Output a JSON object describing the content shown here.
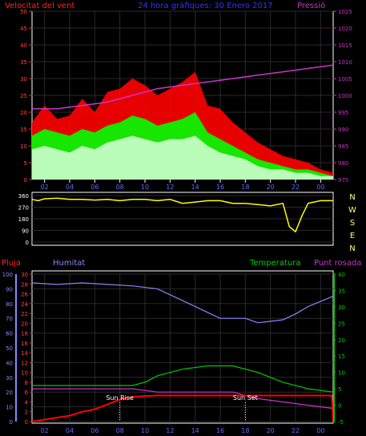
{
  "header": {
    "left_title": "Velocitat del vent",
    "center_title": "24 hora gràfiques: 30 Enero 2017",
    "right_title": "Pressió"
  },
  "chart_data": [
    {
      "type": "line",
      "panel": "wind-pressure",
      "x_ticks": [
        "02",
        "04",
        "06",
        "08",
        "10",
        "12",
        "14",
        "16",
        "18",
        "20",
        "22",
        "00"
      ],
      "x_range_hours": [
        1,
        25
      ],
      "left_axis": {
        "label": "Velocitat del vent",
        "ylim": [
          0,
          50
        ],
        "ticks": [
          0,
          5,
          10,
          15,
          20,
          25,
          30,
          35,
          40,
          45,
          50
        ]
      },
      "right_axis": {
        "label": "Pressió",
        "ylim": [
          975,
          1025
        ],
        "ticks": [
          975,
          980,
          985,
          990,
          995,
          1000,
          1005,
          1010,
          1015,
          1020,
          1025
        ]
      },
      "series": [
        {
          "name": "wind_gust",
          "color": "#ff0000",
          "axis": "left",
          "hours": [
            1,
            2,
            3,
            4,
            5,
            6,
            7,
            8,
            9,
            10,
            11,
            12,
            13,
            14,
            15,
            16,
            17,
            18,
            19,
            20,
            21,
            22,
            23,
            24,
            25
          ],
          "values": [
            17,
            22,
            18,
            19,
            24,
            20,
            26,
            27,
            30,
            28,
            25,
            27,
            29,
            32,
            22,
            21,
            17,
            14,
            11,
            9,
            7,
            6,
            5,
            3,
            2
          ]
        },
        {
          "name": "wind_avg",
          "color": "#00ff00",
          "axis": "left",
          "hours": [
            1,
            2,
            3,
            4,
            5,
            6,
            7,
            8,
            9,
            10,
            11,
            12,
            13,
            14,
            15,
            16,
            17,
            18,
            19,
            20,
            21,
            22,
            23,
            24,
            25
          ],
          "values": [
            13,
            15,
            14,
            13,
            15,
            14,
            16,
            17,
            19,
            18,
            16,
            17,
            18,
            20,
            14,
            12,
            10,
            8,
            6,
            5,
            4,
            3,
            3,
            2,
            1
          ]
        },
        {
          "name": "wind_speed",
          "color": "#ccffcc",
          "axis": "left",
          "hours": [
            1,
            2,
            3,
            4,
            5,
            6,
            7,
            8,
            9,
            10,
            11,
            12,
            13,
            14,
            15,
            16,
            17,
            18,
            19,
            20,
            21,
            22,
            23,
            24,
            25
          ],
          "values": [
            9,
            10,
            9,
            8,
            10,
            9,
            11,
            12,
            13,
            12,
            11,
            12,
            12,
            13,
            10,
            8,
            7,
            6,
            4,
            3,
            3,
            2,
            2,
            1,
            1
          ]
        },
        {
          "name": "pressure",
          "color": "#cc33cc",
          "axis": "right",
          "hours": [
            1,
            3,
            5,
            7,
            9,
            11,
            13,
            15,
            17,
            19,
            21,
            23,
            25
          ],
          "values": [
            996,
            996,
            997,
            998,
            1000,
            1002,
            1003,
            1004,
            1005,
            1006,
            1007,
            1008,
            1009
          ]
        }
      ]
    },
    {
      "type": "line",
      "panel": "wind-direction",
      "right_labels": [
        "N",
        "W",
        "S",
        "E",
        "N"
      ],
      "left_axis": {
        "ylim": [
          0,
          360
        ],
        "ticks": [
          0,
          90,
          180,
          270,
          360
        ]
      },
      "series": [
        {
          "name": "direction",
          "color": "#ffff00",
          "hours": [
            1,
            1.5,
            2,
            3,
            4,
            5,
            6,
            7,
            8,
            9,
            10,
            11,
            12,
            13,
            14,
            15,
            16,
            17,
            18,
            19,
            20,
            21,
            21.5,
            22,
            22.5,
            23,
            24,
            25
          ],
          "values": [
            330,
            320,
            335,
            340,
            330,
            330,
            325,
            330,
            320,
            330,
            330,
            320,
            330,
            300,
            310,
            320,
            320,
            300,
            300,
            290,
            280,
            300,
            120,
            80,
            200,
            300,
            320,
            320
          ]
        }
      ]
    },
    {
      "type": "line",
      "panel": "temperature-humidity",
      "header": {
        "rain_label": "Pluja",
        "humidity_label": "Humitat",
        "temp_label": "Temperatura",
        "dew_label": "Punt rosada"
      },
      "axes": {
        "humidity_ticks": [
          0,
          10,
          20,
          30,
          40,
          50,
          60,
          70,
          80,
          90,
          100
        ],
        "rain_ticks": [
          0,
          2,
          4,
          6,
          8,
          10,
          12,
          14,
          16,
          18,
          20,
          22,
          24,
          26,
          28,
          30
        ],
        "temp_ticks": [
          -5,
          0,
          5,
          10,
          15,
          20,
          25,
          30,
          35,
          40
        ]
      },
      "annotations": {
        "sunrise": "Sun Rise",
        "sunset": "Sun Set"
      },
      "series": [
        {
          "name": "humidity",
          "color": "#8888ff",
          "axis": "humidity",
          "hours": [
            1,
            3,
            5,
            7,
            9,
            11,
            13,
            15,
            16,
            18,
            19,
            20,
            21,
            22,
            23,
            25
          ],
          "values": [
            94,
            93,
            94,
            93,
            92,
            90,
            82,
            74,
            70,
            70,
            67,
            68,
            69,
            73,
            78,
            85
          ]
        },
        {
          "name": "temperature",
          "color": "#00cc00",
          "axis": "temp",
          "hours": [
            1,
            3,
            5,
            7,
            9,
            10,
            11,
            13,
            15,
            17,
            18,
            19,
            21,
            23,
            25
          ],
          "values": [
            6,
            6,
            6,
            6,
            6,
            7,
            9,
            11,
            12,
            12,
            11,
            10,
            7,
            5,
            4
          ]
        },
        {
          "name": "dew_point",
          "color": "#cc33cc",
          "axis": "temp",
          "hours": [
            1,
            3,
            5,
            7,
            9,
            11,
            13,
            15,
            17,
            18,
            19,
            21,
            23,
            25
          ],
          "values": [
            5,
            5,
            5,
            5,
            5,
            4,
            4,
            4,
            4,
            3,
            2,
            1,
            0,
            -1
          ]
        },
        {
          "name": "rain",
          "color": "#ff0000",
          "axis": "rain",
          "hours": [
            1,
            2,
            3,
            4,
            5,
            6,
            7,
            8,
            9,
            10,
            11,
            12,
            13,
            14,
            15,
            16,
            17,
            18,
            19,
            20,
            21,
            22,
            23,
            24,
            24.9,
            25
          ],
          "values": [
            0,
            0.4,
            0.8,
            1.2,
            2,
            2.5,
            3.5,
            4.5,
            5,
            5.2,
            5.3,
            5.3,
            5.3,
            5.3,
            5.3,
            5.3,
            5.3,
            5.3,
            5.3,
            5.3,
            5.3,
            5.3,
            5.3,
            5.3,
            5.3,
            0
          ]
        }
      ]
    }
  ]
}
